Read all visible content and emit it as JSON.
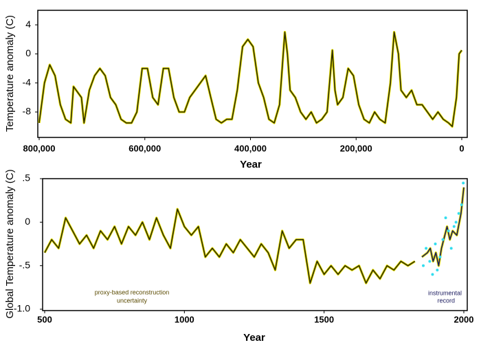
{
  "chart_data": [
    {
      "type": "line",
      "y_label": "Temperature anomaly (C)",
      "x_label": "Year",
      "xlim": [
        800000,
        0
      ],
      "ylim": [
        -11.5,
        6
      ],
      "xticks": [
        {
          "value": 800000,
          "label": "800,000"
        },
        {
          "value": 600000,
          "label": "600,000"
        },
        {
          "value": 400000,
          "label": "400,000"
        },
        {
          "value": 200000,
          "label": "200,000"
        },
        0
      ],
      "yticks": [
        4,
        0,
        -4,
        -8
      ],
      "series": [
        {
          "color": "#2b2b00",
          "x": [
            800000,
            790000,
            780000,
            770000,
            760000,
            750000,
            740000,
            735000,
            720000,
            715000,
            705000,
            695000,
            685000,
            675000,
            665000,
            655000,
            645000,
            635000,
            625000,
            615000,
            605000,
            595000,
            585000,
            575000,
            565000,
            555000,
            545000,
            535000,
            525000,
            515000,
            505000,
            495000,
            485000,
            475000,
            465000,
            455000,
            445000,
            435000,
            425000,
            415000,
            405000,
            395000,
            385000,
            375000,
            365000,
            355000,
            345000,
            335000,
            330000,
            325000,
            315000,
            305000,
            295000,
            285000,
            275000,
            265000,
            255000,
            245000,
            240000,
            235000,
            225000,
            215000,
            205000,
            195000,
            185000,
            175000,
            165000,
            155000,
            145000,
            135000,
            128000,
            120000,
            115000,
            105000,
            95000,
            85000,
            75000,
            65000,
            55000,
            45000,
            35000,
            25000,
            18000,
            10000,
            5000,
            0
          ],
          "values": [
            -9.5,
            -4,
            -1.5,
            -3,
            -7,
            -9,
            -9.5,
            -4.5,
            -6,
            -9.5,
            -5,
            -3,
            -2,
            -3,
            -6,
            -7,
            -9,
            -9.5,
            -9.5,
            -8,
            -2,
            -2,
            -6,
            -7,
            -2,
            -2,
            -6,
            -8,
            -8,
            -6,
            -5,
            -4,
            -3,
            -6,
            -9,
            -9.5,
            -9,
            -9,
            -5,
            1,
            2,
            1,
            -4,
            -6,
            -9,
            -9.5,
            -7,
            3,
            0,
            -5,
            -6,
            -8,
            -9,
            -8,
            -9.5,
            -9,
            -8,
            0.5,
            -5,
            -7,
            -6,
            -2,
            -3,
            -7,
            -9,
            -9.5,
            -8,
            -9,
            -9.5,
            -4,
            3,
            0,
            -5,
            -6,
            -5,
            -7,
            -7,
            -8,
            -9,
            -8,
            -9,
            -9.5,
            -10,
            -6,
            0,
            0.5
          ]
        }
      ]
    },
    {
      "type": "line",
      "y_label": "Global Temperature anomaly (C)",
      "x_label": "Year",
      "xlim": [
        500,
        2000
      ],
      "ylim": [
        -1.0,
        0.5
      ],
      "xticks": [
        500,
        1000,
        1500,
        2000
      ],
      "yticks": [
        {
          "value": 0.5,
          "label": ".5"
        },
        0,
        {
          "value": -0.5,
          "label": "-.5"
        },
        {
          "value": -1.0,
          "label": "-1.0"
        }
      ],
      "annotations": [
        "proxy-based reconstruction",
        "uncertainty",
        "instrumental",
        "record"
      ],
      "series": [
        {
          "color": "#2b2b00",
          "x": [
            500,
            525,
            550,
            575,
            600,
            625,
            650,
            675,
            700,
            725,
            750,
            775,
            800,
            825,
            850,
            875,
            900,
            925,
            950,
            975,
            1000,
            1025,
            1050,
            1075,
            1100,
            1125,
            1150,
            1175,
            1200,
            1225,
            1250,
            1275,
            1300,
            1325,
            1350,
            1375,
            1400,
            1425,
            1450,
            1475,
            1500,
            1525,
            1550,
            1575,
            1600,
            1625,
            1650,
            1675,
            1700,
            1725,
            1750,
            1775,
            1800,
            1825
          ],
          "values": [
            -0.35,
            -0.2,
            -0.3,
            0.05,
            -0.1,
            -0.25,
            -0.15,
            -0.3,
            -0.1,
            -0.2,
            -0.05,
            -0.25,
            -0.05,
            -0.15,
            0.0,
            -0.2,
            0.05,
            -0.15,
            -0.3,
            0.15,
            -0.05,
            -0.15,
            -0.05,
            -0.4,
            -0.3,
            -0.4,
            -0.25,
            -0.35,
            -0.2,
            -0.3,
            -0.4,
            -0.25,
            -0.35,
            -0.55,
            -0.1,
            -0.3,
            -0.2,
            -0.2,
            -0.7,
            -0.45,
            -0.6,
            -0.5,
            -0.6,
            -0.5,
            -0.55,
            -0.5,
            -0.7,
            -0.55,
            -0.65,
            -0.5,
            -0.55,
            -0.45,
            -0.5,
            -0.45
          ]
        },
        {
          "color": "#1a1a5e",
          "x": [
            1850,
            1870,
            1880,
            1890,
            1900,
            1910,
            1920,
            1940,
            1950,
            1960,
            1975,
            1990,
            2000
          ],
          "values": [
            -0.4,
            -0.35,
            -0.3,
            -0.45,
            -0.35,
            -0.5,
            -0.3,
            -0.05,
            -0.2,
            -0.1,
            -0.15,
            0.1,
            0.4
          ]
        },
        {
          "color": "#33ddee",
          "marker": "dot",
          "x": [
            1855,
            1865,
            1878,
            1888,
            1898,
            1905,
            1915,
            1925,
            1935,
            1945,
            1955,
            1965,
            1972,
            1982,
            1992,
            1998
          ],
          "values": [
            -0.5,
            -0.3,
            -0.45,
            -0.6,
            -0.25,
            -0.55,
            -0.4,
            -0.2,
            0.05,
            -0.1,
            -0.3,
            -0.05,
            0.0,
            0.1,
            0.2,
            0.45
          ]
        }
      ]
    }
  ]
}
